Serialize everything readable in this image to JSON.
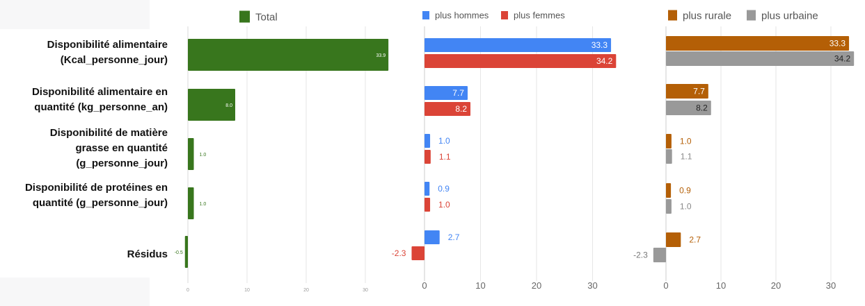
{
  "categories": [
    [
      "Disponibilité alimentaire",
      "(Kcal_personne_jour)"
    ],
    [
      "Disponibilité alimentaire en",
      "quantité (kg_personne_an)"
    ],
    [
      "Disponibilité de matière",
      "grasse en quantité",
      "(g_personne_jour)"
    ],
    [
      "Disponibilité de protéines en",
      "quantité (g_personne_jour)"
    ],
    [
      "Résidus"
    ]
  ],
  "chart_data": [
    {
      "type": "bar",
      "orientation": "horizontal",
      "categories": [
        "Disponibilité alimentaire (Kcal_personne_jour)",
        "Disponibilité alimentaire en quantité (kg_personne_an)",
        "Disponibilité de matière grasse en quantité (g_personne_jour)",
        "Disponibilité de protéines en quantité (g_personne_jour)",
        "Résidus"
      ],
      "series": [
        {
          "name": "Total",
          "color": "#38761d",
          "values": [
            33.9,
            8.0,
            1.0,
            1.0,
            -0.5
          ],
          "labels": [
            "33.9",
            "8.0",
            "1.0",
            "1.0",
            "-0.5"
          ]
        }
      ],
      "xlim": [
        0,
        35
      ],
      "ticks": [
        "0",
        "10",
        "20",
        "30"
      ],
      "legend": "top"
    },
    {
      "type": "bar",
      "orientation": "horizontal",
      "categories": [
        "Disponibilité alimentaire (Kcal_personne_jour)",
        "Disponibilité alimentaire en quantité (kg_personne_an)",
        "Disponibilité de matière grasse en quantité (g_personne_jour)",
        "Disponibilité de protéines en quantité (g_personne_jour)",
        "Résidus"
      ],
      "series": [
        {
          "name": "plus hommes",
          "color": "#4285f4",
          "values": [
            33.3,
            7.7,
            1.0,
            0.9,
            2.7
          ],
          "labels": [
            "33.3",
            "7.7",
            "1.0",
            "0.9",
            "2.7"
          ]
        },
        {
          "name": "plus femmes",
          "color": "#db4437",
          "values": [
            34.2,
            8.2,
            1.1,
            1.0,
            -2.3
          ],
          "labels": [
            "34.2",
            "8.2",
            "1.1",
            "1.0",
            "-2.3"
          ]
        }
      ],
      "xlim": [
        -2.3,
        34.2
      ],
      "ticks": [
        "0",
        "10",
        "20",
        "30"
      ],
      "legend": "top"
    },
    {
      "type": "bar",
      "orientation": "horizontal",
      "categories": [
        "Disponibilité alimentaire (Kcal_personne_jour)",
        "Disponibilité alimentaire en quantité (kg_personne_an)",
        "Disponibilité de matière grasse en quantité (g_personne_jour)",
        "Disponibilité de protéines en quantité (g_personne_jour)",
        "Résidus"
      ],
      "series": [
        {
          "name": "plus rurale",
          "color": "#b45f06",
          "values": [
            33.3,
            7.7,
            1.0,
            0.9,
            2.7
          ],
          "labels": [
            "33.3",
            "7.7",
            "1.0",
            "0.9",
            "2.7"
          ]
        },
        {
          "name": "plus urbaine",
          "color": "#999999",
          "values": [
            34.2,
            8.2,
            1.1,
            1.0,
            -2.3
          ],
          "labels": [
            "34.2",
            "8.2",
            "1.1",
            "1.0",
            "-2.3"
          ]
        }
      ],
      "xlim": [
        -2.3,
        34.2
      ],
      "ticks": [
        "0",
        "10",
        "20",
        "30"
      ],
      "legend": "top"
    }
  ]
}
